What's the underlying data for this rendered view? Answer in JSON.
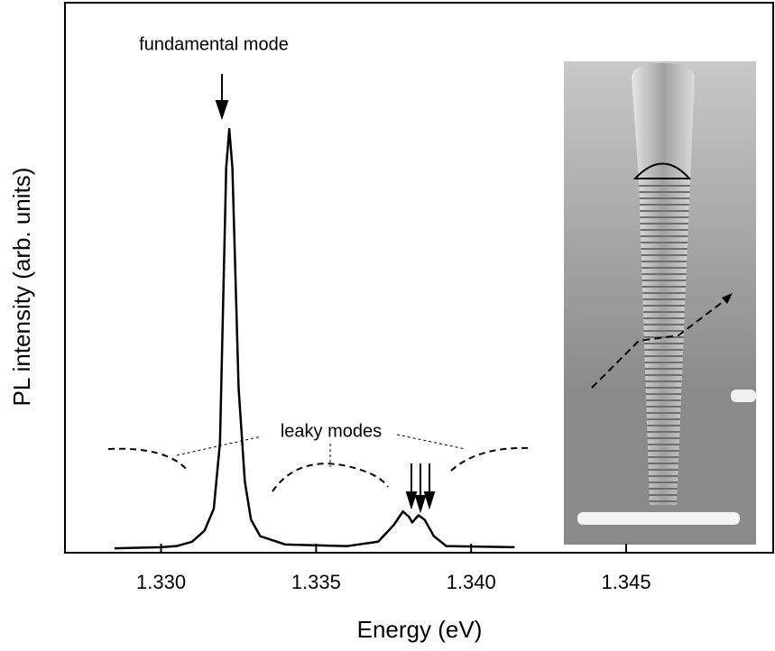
{
  "chart_data": {
    "type": "line",
    "xlabel": "Energy (eV)",
    "ylabel": "PL intensity (arb. units)",
    "annotations": [
      "fundamental mode",
      "leaky modes"
    ],
    "x": [
      1.3285,
      1.33,
      1.3305,
      1.331,
      1.3314,
      1.3317,
      1.3319,
      1.332,
      1.3321,
      1.3322,
      1.3323,
      1.3324,
      1.3325,
      1.3327,
      1.3329,
      1.3332,
      1.334,
      1.336,
      1.337,
      1.3375,
      1.3378,
      1.338,
      1.3381,
      1.3383,
      1.3385,
      1.3388,
      1.3392,
      1.3414
    ],
    "values": [
      0.008,
      0.01,
      0.012,
      0.02,
      0.04,
      0.08,
      0.2,
      0.45,
      0.7,
      0.77,
      0.7,
      0.5,
      0.3,
      0.13,
      0.06,
      0.03,
      0.015,
      0.012,
      0.02,
      0.05,
      0.075,
      0.065,
      0.055,
      0.068,
      0.06,
      0.03,
      0.012,
      0.01
    ],
    "color": "#000000",
    "xlim": [
      1.3269,
      1.3498
    ],
    "ylim": [
      0,
      1
    ],
    "xticks": [
      {
        "value": 1.33,
        "label": "1.330"
      },
      {
        "value": 1.335,
        "label": "1.335"
      },
      {
        "value": 1.34,
        "label": "1.340"
      },
      {
        "value": 1.345,
        "label": "1.345"
      }
    ]
  }
}
